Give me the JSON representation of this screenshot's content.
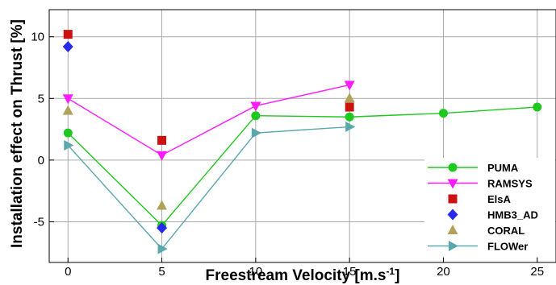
{
  "chart_data": {
    "type": "line",
    "title": "",
    "xlabel": "Freestream Velocity [m.s",
    "xlabel_superscript": "-1",
    "xlabel_suffix": "]",
    "ylabel": "Installation effect on Thrust [%]",
    "xlim": [
      -1,
      26
    ],
    "ylim": [
      -8.3,
      12.2
    ],
    "xticks": [
      0,
      5,
      10,
      15,
      20,
      25
    ],
    "yticks": [
      -5,
      0,
      5,
      10
    ],
    "xtick_labels": [
      "0",
      "5",
      "10",
      "15",
      "20",
      "25"
    ],
    "ytick_labels": [
      "-5",
      "0",
      "5",
      "10"
    ],
    "grid": true,
    "legend_position": "bottom-right",
    "series": [
      {
        "name": "PUMA",
        "color": "#1ec81e",
        "marker": "circle",
        "line": true,
        "x": [
          0,
          5,
          10,
          15,
          20,
          25
        ],
        "y": [
          2.2,
          -5.3,
          3.6,
          3.5,
          3.8,
          4.3
        ]
      },
      {
        "name": "RAMSYS",
        "color": "#ff1aff",
        "marker": "triangle-down",
        "line": true,
        "x": [
          0,
          5,
          10,
          15
        ],
        "y": [
          5.0,
          0.4,
          4.4,
          6.1
        ]
      },
      {
        "name": "ElsA",
        "color": "#cc1111",
        "marker": "square",
        "line": false,
        "x": [
          0,
          5,
          15
        ],
        "y": [
          10.2,
          1.6,
          4.3
        ]
      },
      {
        "name": "HMB3_AD",
        "color": "#2a2aee",
        "marker": "diamond",
        "line": false,
        "x": [
          0,
          5
        ],
        "y": [
          9.2,
          -5.5
        ]
      },
      {
        "name": "CORAL",
        "color": "#b0a25a",
        "marker": "triangle-up",
        "line": false,
        "x": [
          0,
          5,
          15
        ],
        "y": [
          4.0,
          -3.7,
          5.0
        ]
      },
      {
        "name": "FLOWer",
        "color": "#5aa7ad",
        "marker": "triangle-right",
        "line": true,
        "x": [
          0,
          5,
          10,
          15
        ],
        "y": [
          1.2,
          -7.2,
          2.2,
          2.7
        ]
      }
    ]
  }
}
